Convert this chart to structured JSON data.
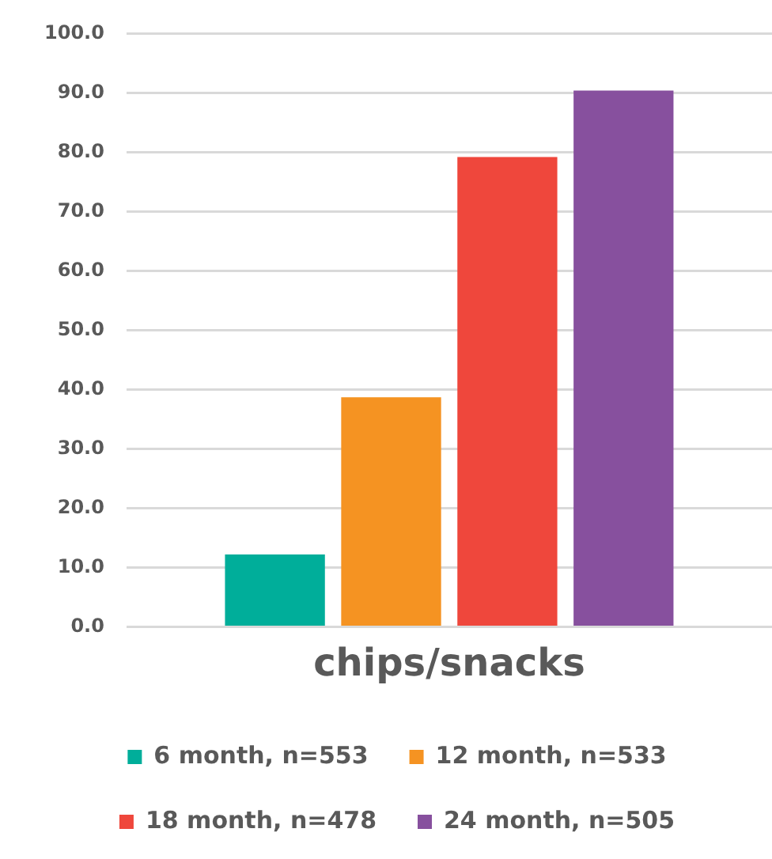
{
  "chart_data": {
    "type": "bar",
    "categories": [
      "chips/snacks"
    ],
    "series": [
      {
        "name": "6 month, n=553",
        "color": "#00ae9a",
        "values": [
          12.2
        ]
      },
      {
        "name": "12 month, n=533",
        "color": "#f59322",
        "values": [
          38.7
        ]
      },
      {
        "name": "18 month, n=478",
        "color": "#ef473c",
        "values": [
          79.2
        ]
      },
      {
        "name": "24 month, n=505",
        "color": "#87509e",
        "values": [
          90.4
        ]
      }
    ],
    "ylim": [
      0,
      100
    ],
    "yticks": [
      {
        "value": 0,
        "label": "0.0"
      },
      {
        "value": 10,
        "label": "10.0"
      },
      {
        "value": 20,
        "label": "20.0"
      },
      {
        "value": 30,
        "label": "30.0"
      },
      {
        "value": 40,
        "label": "40.0"
      },
      {
        "value": 50,
        "label": "50.0"
      },
      {
        "value": 60,
        "label": "60.0"
      },
      {
        "value": 70,
        "label": "70.0"
      },
      {
        "value": 80,
        "label": "80.0"
      },
      {
        "value": 90,
        "label": "90.0"
      },
      {
        "value": 100,
        "label": "100.0"
      }
    ],
    "grid": "y",
    "legend": "bottom"
  }
}
